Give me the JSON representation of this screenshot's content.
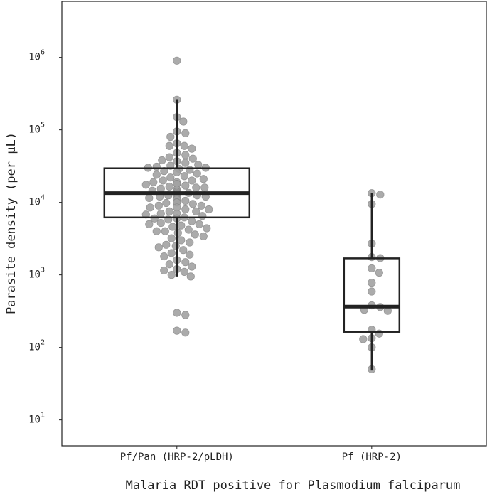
{
  "chart_data": {
    "type": "box-swarm",
    "x_label": "Malaria RDT positive for Plasmodium falciparum",
    "y_label": "Parasite density (per µL)",
    "log_y": true,
    "ylim": [
      4.4,
      5900000
    ],
    "yticks": [
      {
        "value": 10,
        "label": "10",
        "exponent": "1"
      },
      {
        "value": 100,
        "label": "10",
        "exponent": "2"
      },
      {
        "value": 1000,
        "label": "10",
        "exponent": "3"
      },
      {
        "value": 10000,
        "label": "10",
        "exponent": "4"
      },
      {
        "value": 100000,
        "label": "10",
        "exponent": "5"
      },
      {
        "value": 1000000,
        "label": "10",
        "exponent": "6"
      }
    ],
    "point_color": "#a3a3a3",
    "box_color": "#222222",
    "categories": [
      "Pf/Pan (HRP-2/pLDH)",
      "Pf (HRP-2)"
    ],
    "groups": [
      {
        "box": {
          "whislo": 950,
          "q1": 6200,
          "med": 13400,
          "q3": 29500,
          "whishi": 265000
        },
        "points": [
          900000,
          260000,
          150000,
          130000,
          95000,
          90000,
          80000,
          65000,
          60000,
          60000,
          55000,
          48000,
          45000,
          42000,
          40000,
          38000,
          37000,
          35000,
          33000,
          32000,
          31000,
          30000,
          30000,
          29000,
          28000,
          27000,
          26000,
          25000,
          24000,
          23000,
          22000,
          21000,
          20000,
          20000,
          19000,
          19000,
          18000,
          18000,
          17500,
          17000,
          16500,
          16000,
          16000,
          15500,
          15000,
          15000,
          14500,
          14000,
          14000,
          13500,
          13500,
          13000,
          13000,
          12500,
          12500,
          12000,
          12000,
          11500,
          11500,
          11000,
          11000,
          10500,
          10000,
          10000,
          9800,
          9500,
          9000,
          9000,
          8500,
          8500,
          8000,
          8000,
          7500,
          7500,
          7000,
          7000,
          6800,
          6500,
          6200,
          6000,
          6000,
          5800,
          5500,
          5200,
          5000,
          5000,
          4800,
          4600,
          4400,
          4200,
          4000,
          4000,
          3800,
          3600,
          3400,
          3200,
          3000,
          2800,
          2600,
          2500,
          2400,
          2200,
          2000,
          1900,
          1800,
          1600,
          1500,
          1400,
          1300,
          1200,
          1150,
          1100,
          1000,
          950,
          300,
          280,
          170,
          160
        ]
      },
      {
        "box": {
          "whislo": 48,
          "q1": 164,
          "med": 365,
          "q3": 1690,
          "whishi": 13400
        },
        "points": [
          13400,
          12800,
          9500,
          2700,
          1760,
          1700,
          1230,
          1070,
          780,
          590,
          380,
          360,
          330,
          320,
          175,
          155,
          134,
          130,
          100,
          50
        ]
      }
    ]
  }
}
